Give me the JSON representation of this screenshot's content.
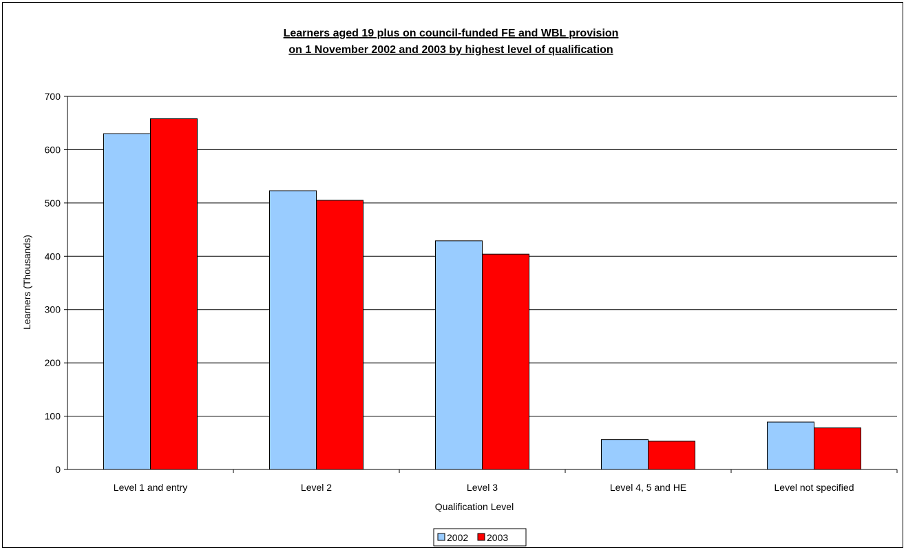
{
  "chart_data": {
    "type": "bar",
    "title_lines": [
      "Learners aged 19 plus on council-funded FE and WBL provision",
      "on 1 November 2002 and 2003 by highest level of qualification"
    ],
    "xlabel": "Qualification Level",
    "ylabel": "Learners (Thousands)",
    "categories": [
      "Level 1 and entry",
      "Level 2",
      "Level 3",
      "Level 4, 5 and HE",
      "Level not specified"
    ],
    "series": [
      {
        "name": "2002",
        "color": "#99ccff",
        "values": [
          630,
          523,
          429,
          56,
          89
        ]
      },
      {
        "name": "2003",
        "color": "#ff0000",
        "values": [
          658,
          505,
          404,
          53,
          78
        ]
      }
    ],
    "ylim": [
      0,
      700
    ],
    "yticks": [
      "0",
      "100",
      "200",
      "300",
      "400",
      "500",
      "600",
      "700"
    ],
    "grid": true,
    "legend_position": "bottom"
  }
}
